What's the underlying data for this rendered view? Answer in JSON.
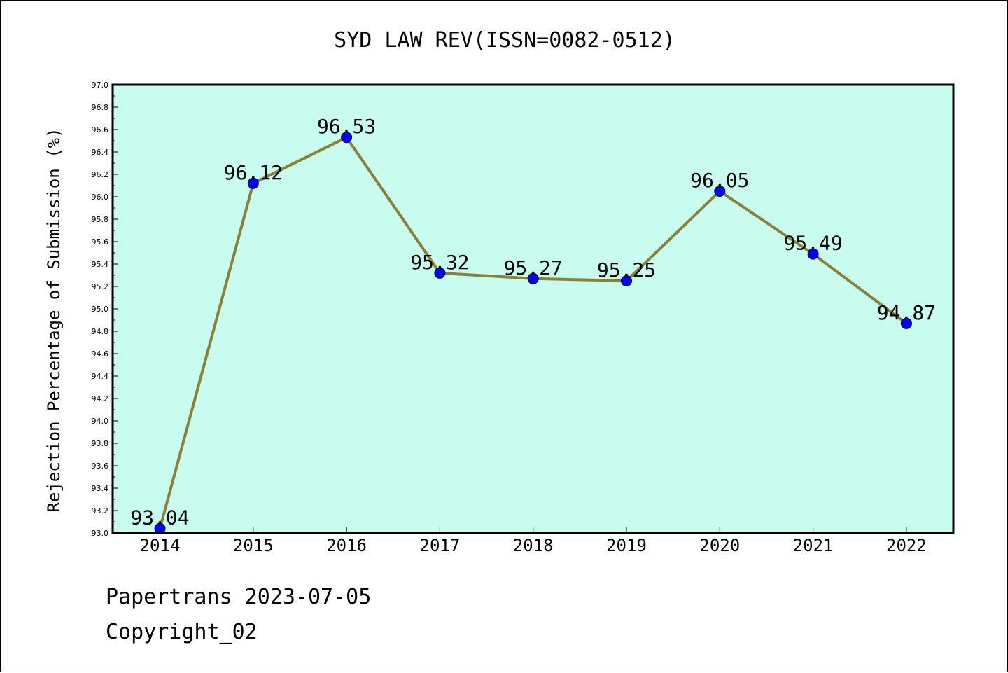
{
  "chart_data": {
    "type": "line",
    "title": "SYD LAW REV(ISSN=0082-0512)",
    "xlabel": "",
    "ylabel": "Rejection Percentage of Submission (%)",
    "categories": [
      "2014",
      "2015",
      "2016",
      "2017",
      "2018",
      "2019",
      "2020",
      "2021",
      "2022"
    ],
    "series": [
      {
        "values": [
          93.04,
          96.12,
          96.53,
          95.32,
          95.27,
          95.25,
          96.05,
          95.49,
          94.87
        ]
      }
    ],
    "data_labels": [
      "93.04",
      "96.12",
      "96.53",
      "95.32",
      "95.27",
      "95.25",
      "96.05",
      "95.49",
      "94.87"
    ],
    "ylim": [
      93.0,
      97.0
    ],
    "y_ticks": [
      "93.0",
      "93.2",
      "93.4",
      "93.6",
      "93.8",
      "94.0",
      "94.2",
      "94.4",
      "94.6",
      "94.8",
      "95.0",
      "95.2",
      "95.4",
      "95.6",
      "95.8",
      "96.0",
      "96.2",
      "96.4",
      "96.6",
      "96.8",
      "97.0"
    ],
    "grid": false,
    "colors": {
      "plot_background": "#c8fcee",
      "line": "#8b8038",
      "marker": "#0000ff"
    }
  },
  "footer": {
    "line1": "Papertrans 2023-07-05",
    "line2": "Copyright_02"
  }
}
